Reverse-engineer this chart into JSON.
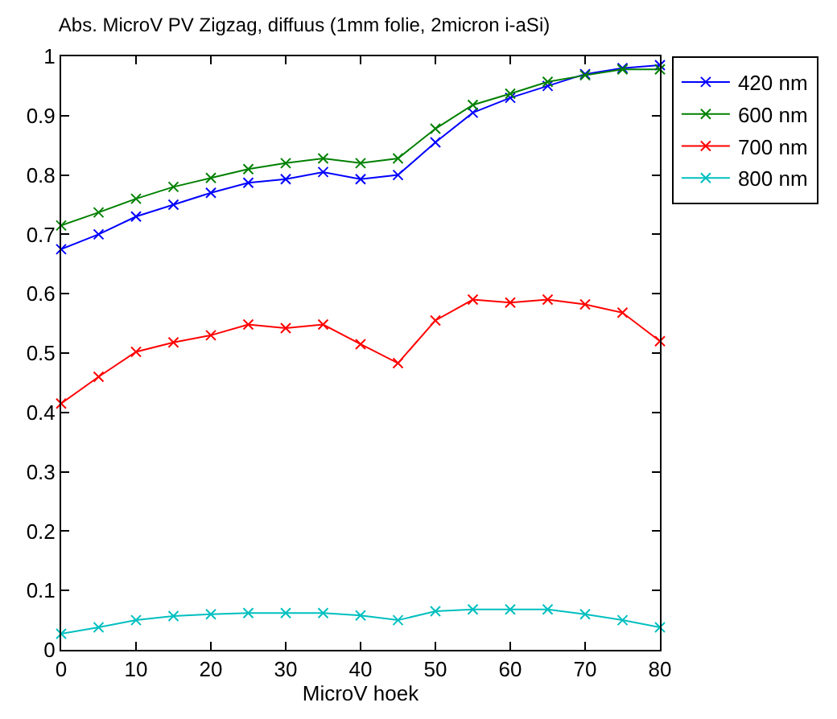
{
  "chart_data": {
    "type": "line",
    "title": "Abs. MicroV PV Zigzag, diffuus (1mm folie, 2micron i-aSi)",
    "xlabel": "MicroV hoek",
    "x": [
      0,
      5,
      10,
      15,
      20,
      25,
      30,
      35,
      40,
      45,
      50,
      55,
      60,
      65,
      70,
      75,
      80
    ],
    "series": [
      {
        "name": "420 nm",
        "color": "#0000ff",
        "values": [
          0.675,
          0.7,
          0.73,
          0.75,
          0.77,
          0.787,
          0.793,
          0.805,
          0.793,
          0.8,
          0.855,
          0.905,
          0.93,
          0.95,
          0.97,
          0.98,
          0.985
        ]
      },
      {
        "name": "600 nm",
        "color": "#008000",
        "values": [
          0.715,
          0.737,
          0.76,
          0.78,
          0.795,
          0.81,
          0.82,
          0.828,
          0.82,
          0.828,
          0.878,
          0.918,
          0.937,
          0.957,
          0.968,
          0.978,
          0.978
        ]
      },
      {
        "name": "700 nm",
        "color": "#ff0000",
        "values": [
          0.415,
          0.46,
          0.502,
          0.518,
          0.53,
          0.548,
          0.542,
          0.548,
          0.515,
          0.483,
          0.555,
          0.59,
          0.585,
          0.59,
          0.582,
          0.568,
          0.52
        ]
      },
      {
        "name": "800 nm",
        "color": "#00bfbf",
        "values": [
          0.027,
          0.038,
          0.05,
          0.057,
          0.06,
          0.062,
          0.062,
          0.062,
          0.058,
          0.05,
          0.065,
          0.068,
          0.068,
          0.068,
          0.06,
          0.05,
          0.038
        ]
      }
    ],
    "xlim": [
      0,
      80
    ],
    "xticks": [
      0,
      10,
      20,
      30,
      40,
      50,
      60,
      70,
      80
    ],
    "ylim": [
      0,
      1
    ],
    "yticks": [
      0,
      0.1,
      0.2,
      0.3,
      0.4,
      0.5,
      0.6,
      0.7,
      0.8,
      0.9,
      1
    ],
    "legend": "top right",
    "marker": "cross",
    "line_style": "solid"
  }
}
